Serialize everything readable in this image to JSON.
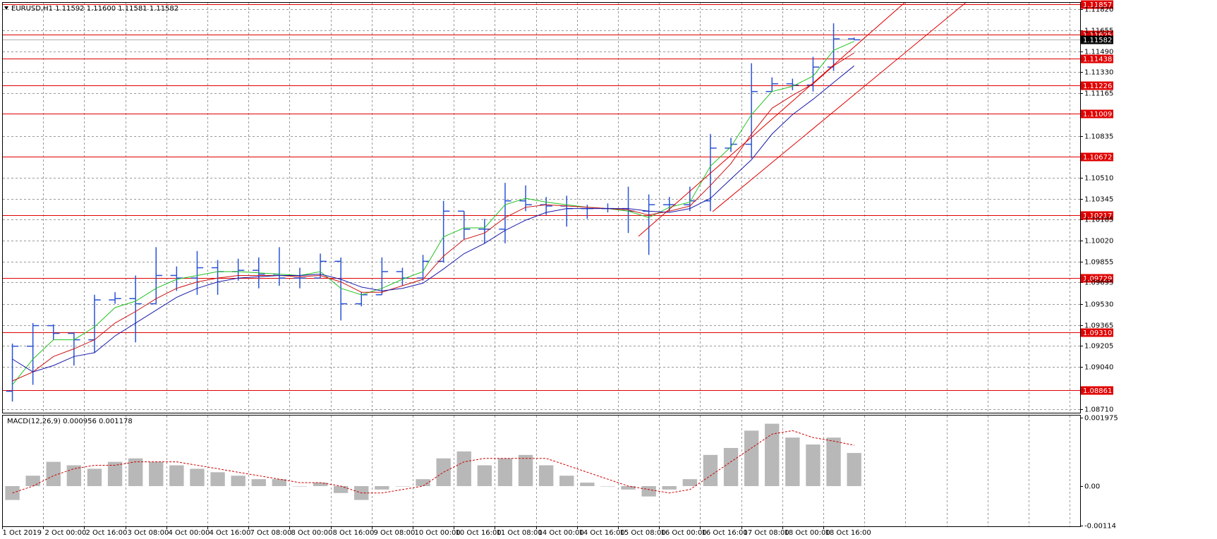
{
  "chart_data": [
    {
      "type": "ohlc",
      "title": "EURUSD,H1  1.11592 1.11600 1.11581 1.11582",
      "categories": [
        "1 Oct 2019",
        null,
        "2 Oct 00:00",
        null,
        "2 Oct 16:00",
        null,
        "3 Oct 08:00",
        null,
        "4 Oct 00:00",
        null,
        "4 Oct 16:00",
        null,
        "7 Oct 08:00",
        null,
        "8 Oct 00:00",
        null,
        "8 Oct 16:00",
        null,
        "9 Oct 08:00",
        null,
        "10 Oct 00:00",
        null,
        "10 Oct 16:00",
        null,
        "11 Oct 08:00",
        null,
        "14 Oct 00:00",
        null,
        "14 Oct 16:00",
        null,
        "15 Oct 08:00",
        null,
        "16 Oct 00:00",
        null,
        "16 Oct 16:00",
        null,
        "17 Oct 08:00",
        null,
        "18 Oct 00:00",
        null,
        "18 Oct 16:00",
        null
      ],
      "open": [
        1.0885,
        1.092,
        1.0936,
        1.093,
        1.0925,
        1.0956,
        1.0957,
        1.0953,
        1.0975,
        1.0973,
        1.0981,
        1.0978,
        1.0979,
        1.0976,
        1.0973,
        1.0973,
        1.0986,
        1.0953,
        1.096,
        1.0978,
        1.0973,
        1.0986,
        1.1025,
        1.1011,
        1.1011,
        1.1033,
        1.103,
        1.1029,
        1.1027,
        1.1027,
        1.1027,
        1.1025,
        1.103,
        1.103,
        1.1033,
        1.1074,
        1.1077,
        1.1118,
        1.1124,
        1.1123,
        1.1137,
        1.1159
      ],
      "high": [
        1.0922,
        1.0938,
        1.0937,
        1.0931,
        1.096,
        1.0962,
        1.0975,
        1.0997,
        1.0982,
        1.0994,
        1.0987,
        1.0988,
        1.0989,
        1.0997,
        1.0981,
        1.0992,
        1.0989,
        1.0962,
        1.0989,
        1.0981,
        1.0991,
        1.1033,
        1.1025,
        1.1019,
        1.1047,
        1.1045,
        1.1036,
        1.1037,
        1.103,
        1.1031,
        1.1044,
        1.1038,
        1.1036,
        1.1044,
        1.1085,
        1.1082,
        1.114,
        1.1129,
        1.1128,
        1.1145,
        1.1171,
        1.116
      ],
      "low": [
        1.0877,
        1.089,
        1.0925,
        1.0905,
        1.0915,
        1.0953,
        1.0923,
        1.0953,
        1.0963,
        1.096,
        1.096,
        1.0971,
        1.0965,
        1.0967,
        1.0965,
        1.0973,
        1.094,
        1.0951,
        1.096,
        1.0967,
        1.0971,
        1.0985,
        1.1003,
        1.1,
        1.1,
        1.1025,
        1.1022,
        1.1013,
        1.1019,
        1.1024,
        1.1008,
        1.0991,
        1.1025,
        1.1025,
        1.1025,
        1.1071,
        1.1066,
        1.1118,
        1.1119,
        1.1118,
        1.1134,
        1.11581
      ],
      "close": [
        1.092,
        1.0936,
        1.093,
        1.0925,
        1.0956,
        1.0957,
        1.0953,
        1.0975,
        1.0973,
        1.0981,
        1.0978,
        1.0979,
        1.0976,
        1.0973,
        1.0973,
        1.0986,
        1.0953,
        1.096,
        1.0978,
        1.0973,
        1.0986,
        1.1025,
        1.1011,
        1.1011,
        1.1033,
        1.103,
        1.1029,
        1.1027,
        1.1027,
        1.1027,
        1.1025,
        1.103,
        1.103,
        1.1033,
        1.1074,
        1.1077,
        1.1118,
        1.1124,
        1.1123,
        1.1137,
        1.1159,
        1.11582
      ],
      "color": "#2a52d4",
      "series": [
        {
          "color": "#22c222",
          "values": [
            1.089,
            1.091,
            1.0925,
            1.0925,
            1.0935,
            1.095,
            1.0955,
            1.0965,
            1.0972,
            1.0975,
            1.0978,
            1.0978,
            1.0977,
            1.0976,
            1.0975,
            1.0978,
            1.0965,
            1.096,
            1.0965,
            1.0972,
            1.0978,
            1.1005,
            1.1012,
            1.1012,
            1.103,
            1.1035,
            1.1032,
            1.103,
            1.1028,
            1.1027,
            1.1025,
            1.102,
            1.1028,
            1.1032,
            1.106,
            1.1075,
            1.11,
            1.1118,
            1.1122,
            1.113,
            1.115,
            1.1157
          ]
        },
        {
          "color": "#cc1111",
          "values": [
            1.0893,
            1.09,
            1.0912,
            1.0918,
            1.0925,
            1.0938,
            1.0947,
            1.0957,
            1.0965,
            1.097,
            1.0973,
            1.0975,
            1.0975,
            1.0975,
            1.0974,
            1.0975,
            1.097,
            1.0962,
            1.0962,
            1.0967,
            1.0972,
            1.099,
            1.1003,
            1.1008,
            1.102,
            1.1028,
            1.103,
            1.1029,
            1.1028,
            1.1027,
            1.1026,
            1.1022,
            1.1025,
            1.1029,
            1.1045,
            1.1062,
            1.1085,
            1.1105,
            1.1115,
            1.1124,
            1.1138,
            1.1148
          ]
        },
        {
          "color": "#1a1aaa",
          "values": [
            1.091,
            1.09,
            1.0905,
            1.0912,
            1.0915,
            1.0928,
            1.0938,
            1.0948,
            1.0958,
            1.0965,
            1.097,
            1.0973,
            1.0974,
            1.0975,
            1.0975,
            1.0976,
            1.0972,
            1.0966,
            1.0963,
            1.0965,
            1.0969,
            1.098,
            1.0992,
            1.1,
            1.101,
            1.1018,
            1.1024,
            1.1027,
            1.1027,
            1.1027,
            1.1027,
            1.1025,
            1.1024,
            1.1027,
            1.1035,
            1.105,
            1.1065,
            1.1085,
            1.11,
            1.1112,
            1.1125,
            1.1138
          ]
        }
      ],
      "ylim": [
        1.08683,
        1.11875
      ],
      "yticks": [
        {
          "value": 1.1182,
          "label": "1.11820"
        },
        1.11655,
        {
          "value": 1.1149,
          "label": "1.11490"
        },
        {
          "value": 1.1133,
          "label": "1.11330"
        },
        1.11165,
        1.10835,
        {
          "value": 1.1051,
          "label": "1.10510"
        },
        1.10345,
        1.10185,
        {
          "value": 1.1002,
          "label": "1.10020"
        },
        1.09855,
        1.09695,
        {
          "value": 1.0953,
          "label": "1.09530"
        },
        1.09365,
        1.09205,
        {
          "value": 1.0904,
          "label": "1.09040"
        },
        {
          "value": 1.0871,
          "label": "1.08710"
        }
      ],
      "levels": [
        1.11857,
        1.11625,
        1.11438,
        1.11226,
        1.11009,
        1.10672,
        1.10217,
        1.09729,
        {
          "value": 1.0931,
          "label": "1.09310"
        },
        1.08861
      ],
      "level_color": "#e00000",
      "current_price": 1.11582,
      "grid": true
    },
    {
      "type": "macd",
      "title": "MACD(12,26,9) 0.000956 0.001178",
      "color": "#b8b8b8",
      "values": [
        -0.0004,
        0.0003,
        0.0007,
        0.0006,
        0.0005,
        0.0007,
        0.0008,
        0.0007,
        0.0006,
        0.0005,
        0.0004,
        0.0003,
        0.0002,
        0.0002,
        0.0,
        0.0001,
        -0.0002,
        -0.0004,
        -0.0001,
        0.0,
        0.0002,
        0.0008,
        0.001,
        0.0006,
        0.0008,
        0.0009,
        0.0006,
        0.0003,
        0.0001,
        0.0,
        -0.0001,
        -0.0003,
        -0.0001,
        0.0002,
        0.0009,
        0.0011,
        0.0016,
        0.0018,
        0.0014,
        0.0012,
        0.0014,
        0.000956
      ],
      "signal": {
        "color": "#cc0000",
        "values": [
          -0.0002,
          0.0,
          0.0003,
          0.0005,
          0.0006,
          0.0006,
          0.0007,
          0.0007,
          0.0007,
          0.0006,
          0.0005,
          0.0004,
          0.0003,
          0.0002,
          0.0001,
          0.0001,
          0.0,
          -0.0002,
          -0.0002,
          -0.0001,
          0.0,
          0.0004,
          0.0007,
          0.0008,
          0.0008,
          0.0008,
          0.0008,
          0.0006,
          0.0004,
          0.0002,
          0.0,
          -0.0001,
          -0.0002,
          -0.0001,
          0.0003,
          0.0007,
          0.0011,
          0.0015,
          0.0016,
          0.0014,
          0.0013,
          0.001178
        ]
      },
      "ylim": [
        -0.00114,
        0.001975
      ],
      "yticks": [
        0.001975,
        {
          "value": 0,
          "label": "0.00"
        },
        -0.00114
      ]
    }
  ]
}
